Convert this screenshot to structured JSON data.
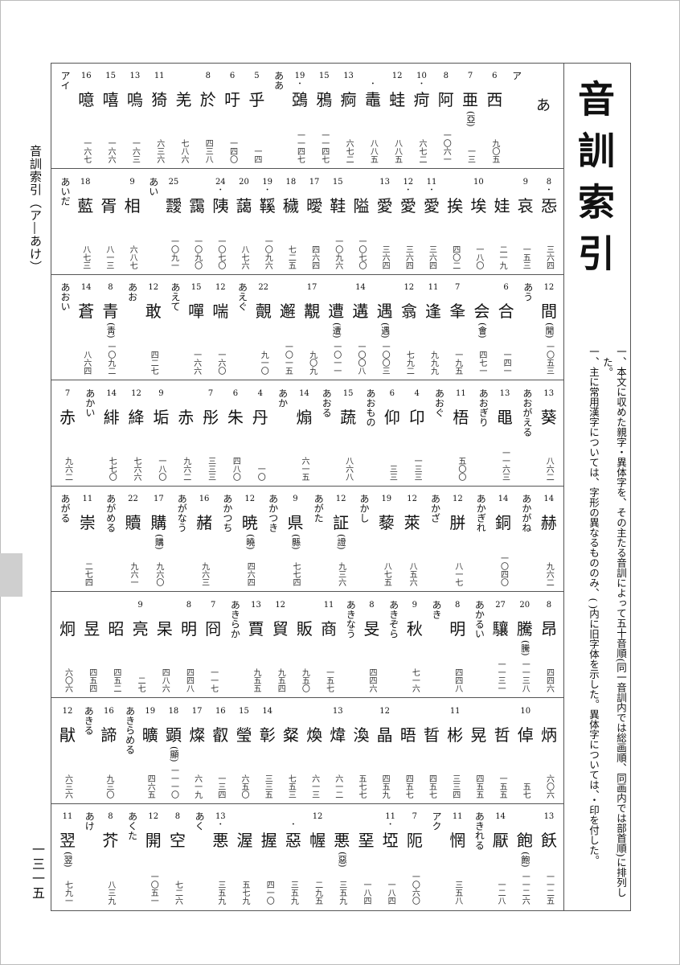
{
  "side_label": "音訓索引（ア―あけ）",
  "page_number": "一三一五",
  "title": "音訓索引",
  "notes": [
    "一、本文に収めた親字・異体字を、その主たる音訓によって五十音順(同一音訓内では総画順、同画内では部首順)に排列した。",
    "一、主に常用漢字については、字形の異なるもののみ、( )内に旧字体を示した。異体字については、・印を付した。"
  ],
  "rows": [
    [
      {
        "h": "あ"
      },
      {
        "r": "ア"
      },
      {
        "s": "6",
        "k": "西",
        "p": "九〇五"
      },
      {
        "s": "7",
        "k": "亜",
        "o": "(亞)",
        "p": "一三"
      },
      {
        "s": "8",
        "k": "阿",
        "p": "一〇六一"
      },
      {
        "s": "10",
        "k": "疴",
        "d": true,
        "p": "六七二"
      },
      {
        "s": "12",
        "k": "蛙",
        "p": "八八五"
      },
      {
        "k": "鼃",
        "d": true,
        "p": "八八五"
      },
      {
        "s": "13",
        "k": "痾",
        "p": "六七二"
      },
      {
        "s": "15",
        "k": "鴉",
        "p": "一一四七"
      },
      {
        "s": "19",
        "k": "鵶",
        "d": true,
        "p": "一一四七"
      },
      {
        "r": "ああ"
      },
      {
        "s": "5",
        "k": "乎",
        "p": "一四"
      },
      {
        "s": "6",
        "k": "吁",
        "p": "一四〇"
      },
      {
        "s": "8",
        "k": "於",
        "p": "四三八"
      },
      {
        "k": "羌",
        "p": "七八六"
      },
      {
        "s": "11",
        "k": "猗",
        "p": "六三六"
      },
      {
        "s": "13",
        "k": "嗚",
        "p": "一六三"
      },
      {
        "s": "15",
        "k": "嘻",
        "p": "一六六"
      },
      {
        "s": "16",
        "k": "噫",
        "p": "一六七"
      },
      {
        "r": "アイ"
      }
    ],
    [
      {
        "s": "8",
        "k": "㤅",
        "d": true,
        "p": "三六四"
      },
      {
        "s": "9",
        "k": "哀",
        "p": "一五三"
      },
      {
        "k": "娃",
        "p": "二一九"
      },
      {
        "s": "10",
        "k": "埃",
        "p": "一八〇"
      },
      {
        "k": "挨",
        "p": "四〇二"
      },
      {
        "s": "11",
        "k": "愛",
        "d": true,
        "p": "三六四"
      },
      {
        "s": "12",
        "k": "愛",
        "d": true,
        "p": "三六四"
      },
      {
        "s": "13",
        "k": "愛",
        "p": "三六四"
      },
      {
        "k": "隘",
        "p": "一〇七〇"
      },
      {
        "s": "15",
        "k": "鞋",
        "p": "一〇九六"
      },
      {
        "s": "17",
        "k": "曖",
        "p": "四六四"
      },
      {
        "s": "18",
        "k": "穢",
        "p": "七二五"
      },
      {
        "s": "19",
        "k": "鞵",
        "d": true,
        "p": "一〇九六"
      },
      {
        "s": "20",
        "k": "藹",
        "p": "八七六"
      },
      {
        "s": "24",
        "k": "䧅",
        "d": true,
        "p": "一〇七〇"
      },
      {
        "k": "靄",
        "p": "一〇九〇"
      },
      {
        "s": "25",
        "k": "靉",
        "p": "一〇九一"
      },
      {
        "r": "あい"
      },
      {
        "s": "9",
        "k": "相",
        "p": "六八七"
      },
      {
        "k": "胥",
        "p": "八一三"
      },
      {
        "s": "18",
        "k": "藍",
        "p": "八七三"
      },
      {
        "r": "あいだ"
      }
    ],
    [
      {
        "s": "12",
        "k": "間",
        "o": "(閒)",
        "p": "一〇五三"
      },
      {
        "r": "あう"
      },
      {
        "s": "6",
        "k": "合",
        "p": "一四一"
      },
      {
        "k": "会",
        "o": "(會)",
        "p": "四七一"
      },
      {
        "s": "7",
        "k": "夆",
        "p": "一九五"
      },
      {
        "s": "11",
        "k": "逢",
        "p": "九九九"
      },
      {
        "s": "12",
        "k": "翕",
        "p": "七九二"
      },
      {
        "k": "遇",
        "o": "(遇)",
        "p": "一〇〇三"
      },
      {
        "s": "14",
        "k": "遘",
        "p": "一〇〇八"
      },
      {
        "k": "遭",
        "o": "(遭)",
        "p": "一〇一一"
      },
      {
        "s": "17",
        "k": "覯",
        "p": "九〇九"
      },
      {
        "k": "邂",
        "p": "一〇一五"
      },
      {
        "s": "22",
        "k": "覿",
        "p": "九一〇"
      },
      {
        "r": "あえぐ"
      },
      {
        "s": "12",
        "k": "喘",
        "p": "一六〇"
      },
      {
        "s": "15",
        "k": "嘽",
        "p": "一六六"
      },
      {
        "r": "あえて"
      },
      {
        "s": "12",
        "k": "敢",
        "p": "四二七"
      },
      {
        "r": "あお"
      },
      {
        "s": "8",
        "k": "青",
        "o": "(靑)",
        "p": "一〇九二"
      },
      {
        "s": "14",
        "k": "蒼",
        "p": "八六四"
      },
      {
        "r": "あおい"
      }
    ],
    [
      {
        "s": "13",
        "k": "葵",
        "p": "八六二"
      },
      {
        "r": "あおがえる"
      },
      {
        "s": "13",
        "k": "黽",
        "p": "一一六三"
      },
      {
        "r": "あおぎり"
      },
      {
        "s": "11",
        "k": "梧",
        "p": "五〇〇"
      },
      {
        "r": "あおぐ"
      },
      {
        "s": "4",
        "k": "卬",
        "p": "一三三"
      },
      {
        "s": "6",
        "k": "仰",
        "p": "三三"
      },
      {
        "r": "あおもの"
      },
      {
        "s": "15",
        "k": "蔬",
        "p": "八六八"
      },
      {
        "r": "あおる"
      },
      {
        "s": "14",
        "k": "煽",
        "p": "六一五"
      },
      {
        "r": "あか"
      },
      {
        "s": "4",
        "k": "丹",
        "p": "一〇"
      },
      {
        "s": "6",
        "k": "朱",
        "p": "四八〇"
      },
      {
        "s": "7",
        "k": "彤",
        "p": "三三三"
      },
      {
        "k": "赤",
        "p": "九六二"
      },
      {
        "s": "9",
        "k": "垢",
        "p": "一八〇"
      },
      {
        "s": "12",
        "k": "絳",
        "p": "七六六"
      },
      {
        "s": "14",
        "k": "緋",
        "p": "七七〇"
      },
      {
        "r": "あかい"
      },
      {
        "s": "7",
        "k": "赤",
        "p": "九六二"
      }
    ],
    [
      {
        "s": "14",
        "k": "赫",
        "p": "九六二"
      },
      {
        "r": "あかがね"
      },
      {
        "s": "14",
        "k": "銅",
        "p": "一〇四〇"
      },
      {
        "r": "あかぎれ"
      },
      {
        "s": "12",
        "k": "胼",
        "p": "八一七"
      },
      {
        "r": "あかざ"
      },
      {
        "s": "12",
        "k": "萊",
        "p": "八五六"
      },
      {
        "s": "19",
        "k": "藜",
        "p": "八七五"
      },
      {
        "r": "あかし"
      },
      {
        "s": "12",
        "k": "証",
        "o": "(證)",
        "p": "九三六"
      },
      {
        "r": "あがた"
      },
      {
        "s": "9",
        "k": "県",
        "o": "(縣)",
        "p": "七七四"
      },
      {
        "r": "あかつき"
      },
      {
        "s": "12",
        "k": "暁",
        "o": "(曉)",
        "p": "四六四"
      },
      {
        "r": "あかつち"
      },
      {
        "s": "16",
        "k": "赭",
        "p": "九六三"
      },
      {
        "r": "あがなう"
      },
      {
        "s": "17",
        "k": "購",
        "o": "(購)",
        "p": "九六〇"
      },
      {
        "s": "22",
        "k": "贖",
        "p": "九六一"
      },
      {
        "r": "あがめる"
      },
      {
        "s": "11",
        "k": "崇",
        "p": "二七四"
      },
      {
        "r": "あがる"
      }
    ],
    [
      {
        "s": "8",
        "k": "昂",
        "p": "四四六"
      },
      {
        "s": "20",
        "k": "騰",
        "o": "(騰)",
        "p": "一一三八"
      },
      {
        "s": "27",
        "k": "驤",
        "p": "一一三一"
      },
      {
        "r": "あかるい"
      },
      {
        "s": "8",
        "k": "明",
        "p": "四四八"
      },
      {
        "r": "あき"
      },
      {
        "s": "9",
        "k": "秋",
        "p": "七一六"
      },
      {
        "r": "あきぞら"
      },
      {
        "s": "8",
        "k": "旻",
        "p": "四四六"
      },
      {
        "r": "あきなう"
      },
      {
        "s": "11",
        "k": "商",
        "p": "一五七"
      },
      {
        "k": "販",
        "p": "九五〇"
      },
      {
        "s": "12",
        "k": "貿",
        "p": "九五四"
      },
      {
        "s": "13",
        "k": "賈",
        "p": "九五五"
      },
      {
        "r": "あきらか"
      },
      {
        "s": "7",
        "k": "冏",
        "p": "一一七"
      },
      {
        "s": "8",
        "k": "明",
        "p": "四四八"
      },
      {
        "k": "杲",
        "p": "四八六"
      },
      {
        "s": "9",
        "k": "亮",
        "p": "二七"
      },
      {
        "k": "昭",
        "p": "四五二"
      },
      {
        "k": "昱",
        "p": "四五四"
      },
      {
        "k": "炯",
        "p": "六〇六"
      }
    ],
    [
      {
        "k": "炳",
        "p": "六〇六"
      },
      {
        "s": "10",
        "k": "倬",
        "p": "五七"
      },
      {
        "k": "哲",
        "p": "一五五"
      },
      {
        "k": "晃",
        "p": "四五五"
      },
      {
        "s": "11",
        "k": "彬",
        "p": "三三四"
      },
      {
        "k": "晢",
        "p": "四五七"
      },
      {
        "k": "晤",
        "p": "四五七"
      },
      {
        "s": "12",
        "k": "晶",
        "p": "四五九"
      },
      {
        "k": "渙",
        "p": "五七七"
      },
      {
        "s": "13",
        "k": "煒",
        "p": "六一二"
      },
      {
        "k": "煥",
        "p": "六一三"
      },
      {
        "k": "粲",
        "p": "七五三"
      },
      {
        "s": "14",
        "k": "彰",
        "p": "三三五"
      },
      {
        "s": "15",
        "k": "瑩",
        "p": "六五〇"
      },
      {
        "s": "16",
        "k": "叡",
        "p": "一三四"
      },
      {
        "s": "17",
        "k": "燦",
        "p": "六一九"
      },
      {
        "s": "18",
        "k": "顕",
        "o": "(顯)",
        "p": "一一一〇"
      },
      {
        "s": "19",
        "k": "曠",
        "p": "四六五"
      },
      {
        "r": "あきらめる"
      },
      {
        "s": "16",
        "k": "諦",
        "p": "九三〇"
      },
      {
        "r": "あきる"
      },
      {
        "s": "12",
        "k": "猒",
        "p": "六三六"
      }
    ],
    [
      {
        "s": "13",
        "k": "飫",
        "p": "一一二五"
      },
      {
        "k": "飽",
        "o": "(飽)",
        "p": "一一二六"
      },
      {
        "s": "14",
        "k": "厭",
        "p": "一二八"
      },
      {
        "r": "あきれる"
      },
      {
        "s": "11",
        "k": "惘",
        "p": "三五八"
      },
      {
        "r": "アク"
      },
      {
        "s": "7",
        "k": "阨",
        "p": "一〇六〇"
      },
      {
        "s": "11",
        "k": "埡",
        "d": true,
        "p": "一八四"
      },
      {
        "k": "堊",
        "p": "一八四"
      },
      {
        "k": "悪",
        "o": "(惡)",
        "p": "三五九"
      },
      {
        "s": "12",
        "k": "幄",
        "p": "二九五"
      },
      {
        "k": "惡",
        "d": true,
        "p": "三五九"
      },
      {
        "k": "握",
        "p": "四一〇"
      },
      {
        "k": "渥",
        "p": "五七九"
      },
      {
        "s": "13",
        "k": "悪",
        "d": true,
        "p": "三五九"
      },
      {
        "r": "あく"
      },
      {
        "s": "8",
        "k": "空",
        "p": "七二六"
      },
      {
        "s": "12",
        "k": "開",
        "p": "一〇五一"
      },
      {
        "r": "あくた"
      },
      {
        "s": "8",
        "k": "芥",
        "p": "八三九"
      },
      {
        "r": "あけ"
      },
      {
        "s": "11",
        "k": "翌",
        "o": "(翌)",
        "p": "七九一"
      }
    ]
  ]
}
